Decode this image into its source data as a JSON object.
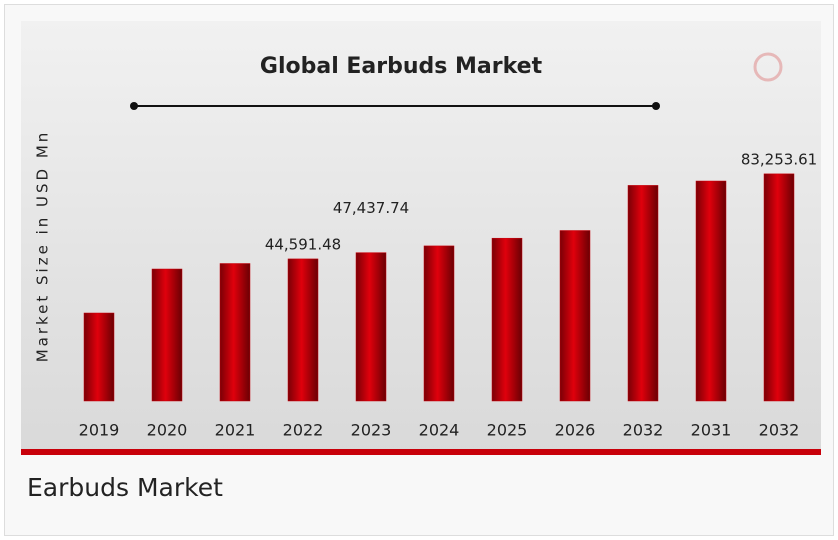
{
  "chart_data": {
    "type": "bar",
    "title": "Global Earbuds Market",
    "ylabel": "Market Size in USD Mn",
    "categories": [
      "2019",
      "2020",
      "2021",
      "2022",
      "2023",
      "2024",
      "2025",
      "2026",
      "2032",
      "2031",
      "2032"
    ],
    "values": [
      20000,
      40000,
      42500,
      44591.48,
      47437.74,
      50500,
      54000,
      57500,
      78000,
      80000,
      83253.61
    ],
    "value_labels": [
      null,
      null,
      null,
      "44,591.48",
      "47,437.74",
      null,
      null,
      null,
      null,
      null,
      "83,253.61"
    ],
    "color": "#c8000a",
    "ylim": [
      -20000,
      90000
    ]
  },
  "caption": "Earbuds Market"
}
